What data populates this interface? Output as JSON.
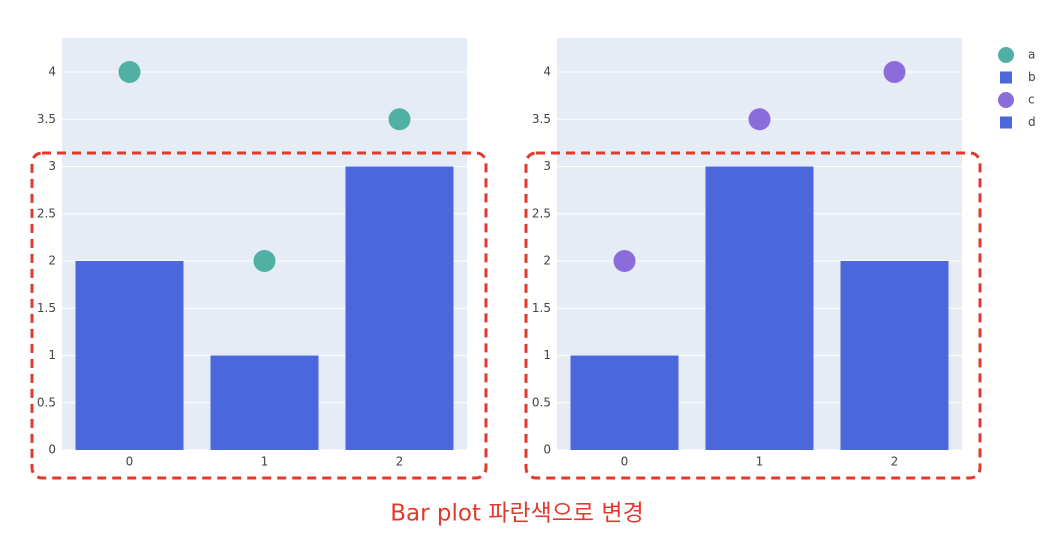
{
  "chart_data": [
    {
      "type": "bar",
      "x": [
        0,
        1,
        2
      ],
      "xlim": [
        -0.5,
        2.5
      ],
      "xticks": [
        0,
        1,
        2
      ],
      "ylim": [
        0,
        4.36
      ],
      "yticks": [
        0,
        0.5,
        1,
        1.5,
        2,
        2.5,
        3,
        3.5,
        4
      ],
      "grid": true,
      "series": [
        {
          "name": "a",
          "type": "scatter",
          "color": "#4fb0a3",
          "values": [
            4,
            2,
            3.5
          ]
        },
        {
          "name": "b",
          "type": "bar",
          "color": "#4a68db",
          "values": [
            2,
            1,
            3
          ]
        }
      ]
    },
    {
      "type": "bar",
      "x": [
        0,
        1,
        2
      ],
      "xlim": [
        -0.5,
        2.5
      ],
      "xticks": [
        0,
        1,
        2
      ],
      "ylim": [
        0,
        4.36
      ],
      "yticks": [
        0,
        0.5,
        1,
        1.5,
        2,
        2.5,
        3,
        3.5,
        4
      ],
      "grid": true,
      "series": [
        {
          "name": "c",
          "type": "scatter",
          "color": "#8a6ddb",
          "values": [
            2,
            3.5,
            4
          ]
        },
        {
          "name": "d",
          "type": "bar",
          "color": "#4a68db",
          "values": [
            1,
            3,
            2
          ]
        }
      ]
    }
  ],
  "annotation": "Bar plot 파란색으로 변경"
}
